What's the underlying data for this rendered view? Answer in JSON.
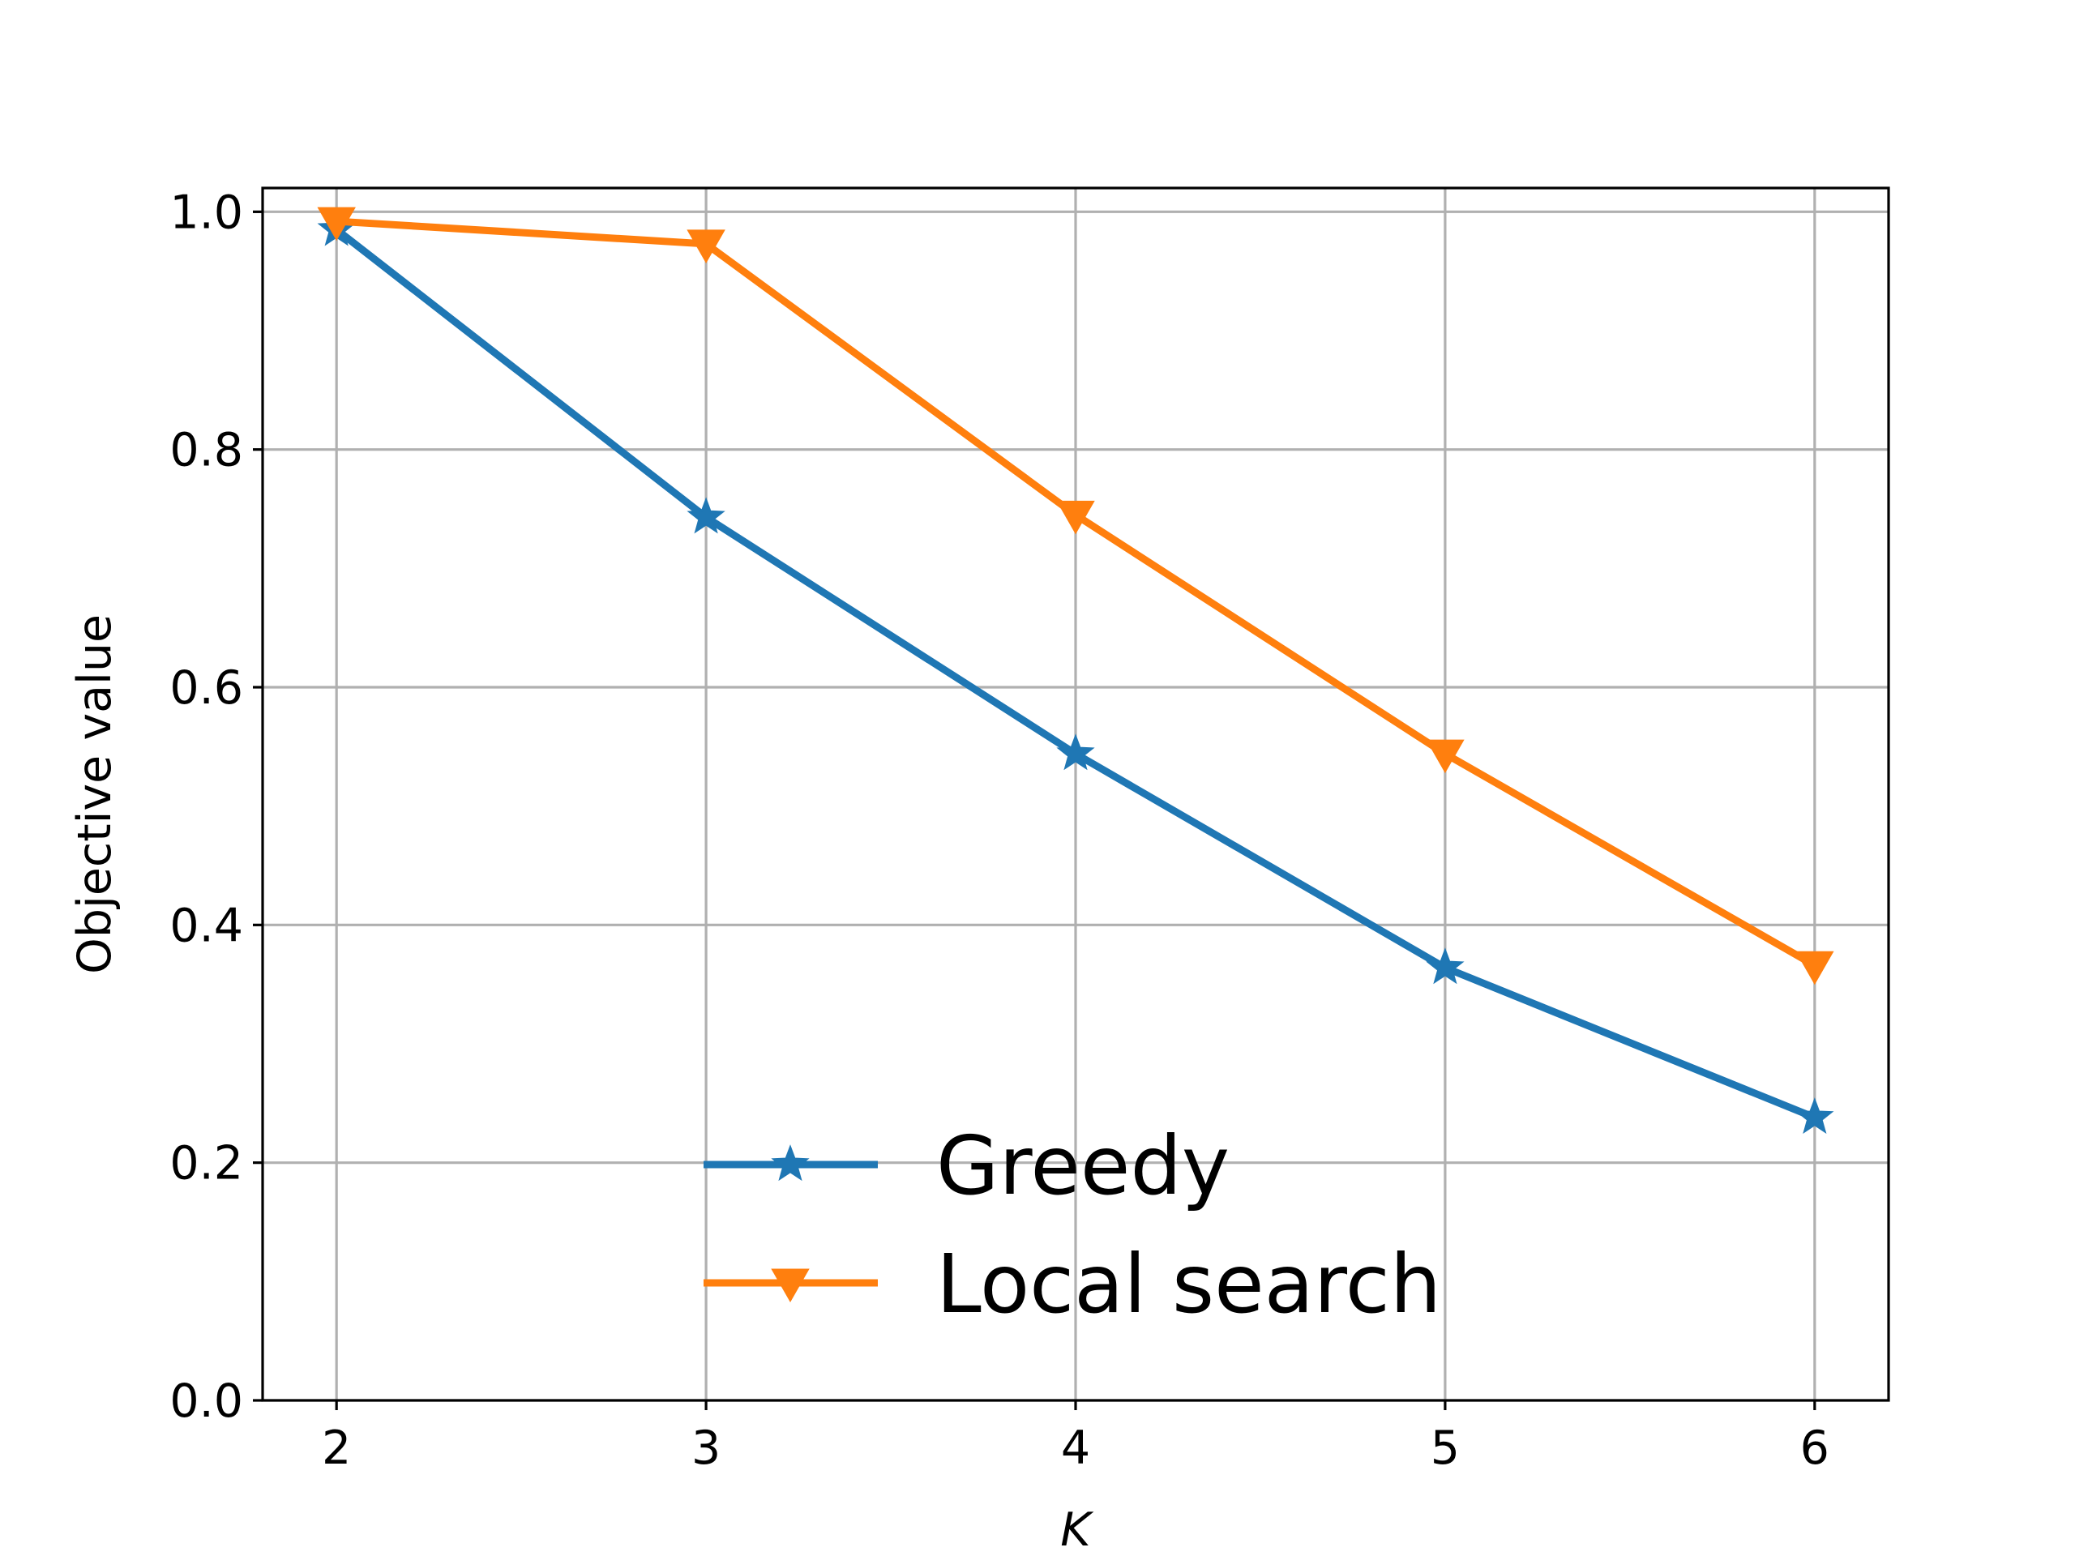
{
  "chart_data": {
    "type": "line",
    "xlabel": "K",
    "ylabel": "Objective value",
    "x": [
      2,
      3,
      4,
      5,
      6
    ],
    "xticks": [
      "2",
      "3",
      "4",
      "5",
      "6"
    ],
    "yticks": [
      "0.0",
      "0.2",
      "0.4",
      "0.6",
      "0.8",
      "1.0"
    ],
    "xlim": [
      1.8,
      6.2
    ],
    "ylim": [
      0.0,
      1.02
    ],
    "grid": true,
    "legend_position": "lower-center",
    "series": [
      {
        "name": "Greedy",
        "color": "#1f77b4",
        "marker": "star",
        "values": [
          0.985,
          0.743,
          0.544,
          0.364,
          0.238
        ]
      },
      {
        "name": "Local search",
        "color": "#ff7f0e",
        "marker": "triangle-down",
        "values": [
          0.992,
          0.973,
          0.745,
          0.544,
          0.366
        ]
      }
    ]
  }
}
